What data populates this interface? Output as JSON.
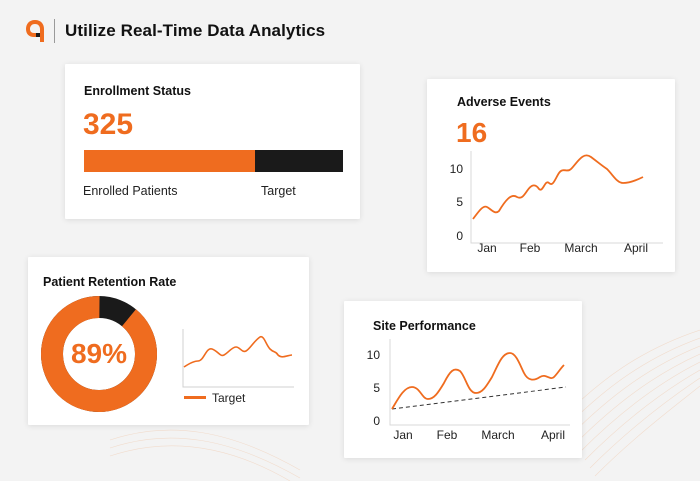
{
  "header": {
    "title": "Utilize Real-Time Data Analytics",
    "logo_icon": "brand-logo-icon"
  },
  "colors": {
    "accent": "#ef6c1f",
    "dark": "#1a1a1a",
    "background": "#f3f3f3",
    "card": "#ffffff"
  },
  "enrollment": {
    "title": "Enrollment Status",
    "value": "325",
    "progress_fraction": 0.66,
    "labels": [
      "Enrolled Patients",
      "Target"
    ]
  },
  "adverse": {
    "title": "Adverse Events",
    "value": "16",
    "y_ticks": [
      "10",
      "5",
      "0"
    ],
    "x_ticks": [
      "Jan",
      "Feb",
      "March",
      "April"
    ]
  },
  "retention": {
    "title": "Patient Retention Rate",
    "percent_label": "89%",
    "percent_value": 89,
    "legend_label": "Target"
  },
  "site": {
    "title": "Site Performance",
    "y_ticks": [
      "10",
      "5",
      "0"
    ],
    "x_ticks": [
      "Jan",
      "Feb",
      "March",
      "April"
    ]
  }
}
